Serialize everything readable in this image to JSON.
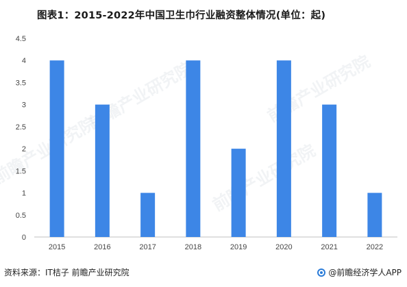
{
  "title": "图表1：2015-2022年中国卫生巾行业融资整体情况(单位：起)",
  "source": "资料来源：IT桔子 前瞻产业研究院",
  "brand": "@前瞻经济学人APP",
  "watermark": "前瞻产业研究院",
  "colors": {
    "bar": "#3d86e6",
    "axis": "#bfbfbf",
    "tick_text": "#444444"
  },
  "chart_data": {
    "type": "bar",
    "categories": [
      "2015",
      "2016",
      "2017",
      "2018",
      "2019",
      "2020",
      "2021",
      "2022"
    ],
    "values": [
      4,
      3,
      1,
      4,
      2,
      4,
      3,
      1
    ],
    "title": "",
    "xlabel": "",
    "ylabel": "",
    "ylim": [
      0,
      4.5
    ],
    "yticks": [
      "0",
      "0.5",
      "1",
      "1.5",
      "2",
      "2.5",
      "3",
      "3.5",
      "4",
      "4.5"
    ],
    "grid": false,
    "legend": "none"
  }
}
